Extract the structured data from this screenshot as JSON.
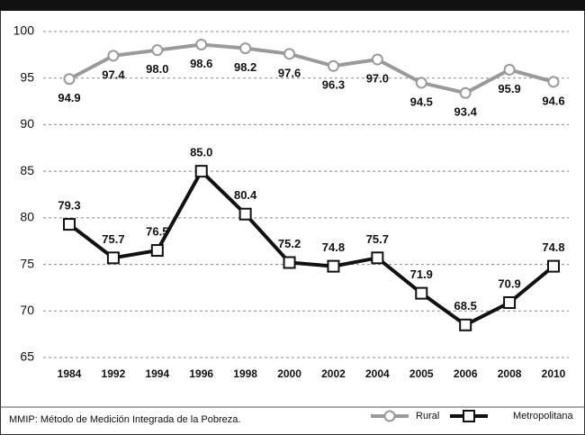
{
  "chart_data": {
    "type": "line",
    "categories": [
      "1984",
      "1992",
      "1994",
      "1996",
      "1998",
      "2000",
      "2002",
      "2004",
      "2005",
      "2006",
      "2008",
      "2010"
    ],
    "series": [
      {
        "name": "Rural",
        "color": "#9a9a9a",
        "marker": "circle",
        "values": [
          94.9,
          97.4,
          98.0,
          98.6,
          98.2,
          97.6,
          96.3,
          97.0,
          94.5,
          93.4,
          95.9,
          94.6
        ],
        "value_labels": [
          "94.9",
          "97.4",
          "98.0",
          "98.6",
          "98.2",
          "97.6",
          "96.3",
          "97.0",
          "94.5",
          "93.4",
          "95.9",
          "94.6"
        ]
      },
      {
        "name": "Metropolitana",
        "color": "#111111",
        "marker": "square",
        "values": [
          79.3,
          75.7,
          76.5,
          85.0,
          80.4,
          75.2,
          74.8,
          75.7,
          71.9,
          68.5,
          70.9,
          74.8
        ],
        "value_labels": [
          "79.3",
          "75.7",
          "76.5",
          "85.0",
          "80.4",
          "75.2",
          "74.8",
          "75.7",
          "71.9",
          "68.5",
          "70.9",
          "74.8"
        ]
      }
    ],
    "ylim": [
      65,
      100
    ],
    "yticks": [
      65,
      70,
      75,
      80,
      85,
      90,
      95,
      100
    ],
    "grid": true,
    "note": "MMIP: Método de Medición Integrada de la Pobreza."
  }
}
